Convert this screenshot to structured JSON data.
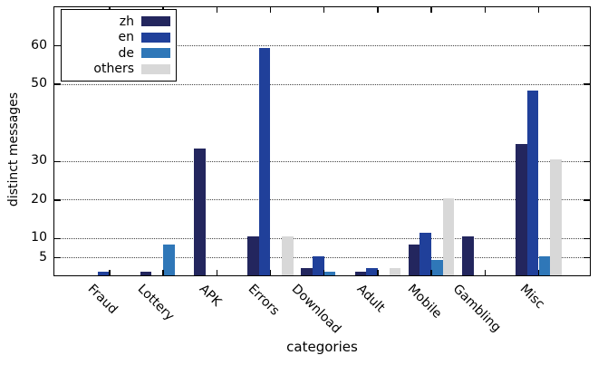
{
  "chart_data": {
    "type": "bar",
    "title": "",
    "xlabel": "categories",
    "ylabel": "distinct messages",
    "categories": [
      "Fraud",
      "Lottery",
      "APK",
      "Errors",
      "Download",
      "Adult",
      "Mobile",
      "Gambling",
      "Misc"
    ],
    "series": [
      {
        "name": "zh",
        "color": "#23265e",
        "values": [
          0,
          1,
          33,
          10,
          2,
          1,
          8,
          10,
          34
        ]
      },
      {
        "name": "en",
        "color": "#20409a",
        "values": [
          1,
          0,
          0,
          59,
          5,
          2,
          11,
          0,
          48
        ]
      },
      {
        "name": "de",
        "color": "#2f77b8",
        "values": [
          0,
          8,
          0,
          0,
          1,
          0,
          4,
          0,
          5
        ]
      },
      {
        "name": "others",
        "color": "#d8d8d8",
        "values": [
          0,
          0,
          0,
          10,
          0,
          2,
          20,
          0,
          30
        ]
      }
    ],
    "yticks": [
      5,
      10,
      20,
      30,
      50,
      60
    ],
    "ylim": [
      0,
      70
    ],
    "grid": "horizontal dotted at each ytick",
    "legend_position": "top-left",
    "axis_color": "#000000",
    "background_color": "#ffffff"
  }
}
